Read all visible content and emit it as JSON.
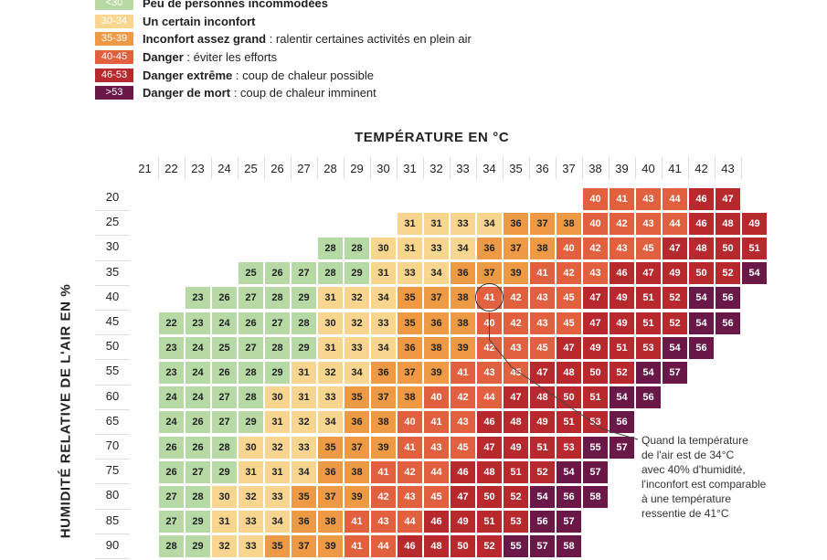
{
  "legend": [
    {
      "range": "<30",
      "label": "Peu de personnes incommodées",
      "desc": "",
      "color": "#b7d9a6"
    },
    {
      "range": "30-34",
      "label": "Un certain inconfort",
      "desc": "",
      "color": "#f8d690"
    },
    {
      "range": "35-39",
      "label": "Inconfort assez grand",
      "desc": " : ralentir certaines activités en plein air",
      "color": "#ee9a44"
    },
    {
      "range": "40-45",
      "label": "Danger",
      "desc": " : éviter les efforts",
      "color": "#e0603f"
    },
    {
      "range": "46-53",
      "label": "Danger extrême",
      "desc": " : coup de chaleur possible",
      "color": "#b8292e"
    },
    {
      "range": ">53",
      "label": "Danger de mort",
      "desc": " : coup de chaleur imminent",
      "color": "#6a1848"
    }
  ],
  "chart_data": {
    "type": "heatmap",
    "title": "TEMPÉRATURE EN °C",
    "ylabel": "HUMIDITÉ RELATIVE DE L'AIR EN %",
    "x": [
      21,
      22,
      23,
      24,
      25,
      26,
      27,
      28,
      29,
      30,
      31,
      32,
      33,
      34,
      35,
      36,
      37,
      38,
      39,
      40,
      41,
      42,
      43
    ],
    "y": [
      20,
      25,
      30,
      35,
      40,
      45,
      50,
      55,
      60,
      65,
      70,
      75,
      80,
      85,
      90
    ],
    "rows": [
      {
        "start": 38,
        "values": [
          40,
          41,
          43,
          44,
          46,
          47
        ]
      },
      {
        "start": 31,
        "values": [
          31,
          31,
          33,
          34,
          36,
          37,
          38,
          40,
          42,
          43,
          44,
          46,
          48,
          49
        ]
      },
      {
        "start": 28,
        "values": [
          28,
          28,
          30,
          31,
          33,
          34,
          36,
          37,
          38,
          40,
          42,
          43,
          45,
          47,
          48,
          50,
          51
        ]
      },
      {
        "start": 25,
        "values": [
          25,
          26,
          27,
          28,
          29,
          31,
          33,
          34,
          36,
          37,
          39,
          41,
          42,
          43,
          46,
          47,
          49,
          50,
          52,
          54
        ]
      },
      {
        "start": 23,
        "values": [
          23,
          26,
          27,
          28,
          29,
          31,
          32,
          34,
          35,
          37,
          38,
          41,
          42,
          43,
          45,
          47,
          49,
          51,
          52,
          54,
          56
        ]
      },
      {
        "start": 22,
        "values": [
          22,
          23,
          24,
          26,
          27,
          28,
          30,
          32,
          33,
          35,
          36,
          38,
          40,
          42,
          43,
          45,
          47,
          49,
          51,
          52,
          54,
          56
        ]
      },
      {
        "start": 22,
        "values": [
          23,
          24,
          25,
          27,
          28,
          29,
          31,
          33,
          34,
          36,
          38,
          39,
          42,
          43,
          45,
          47,
          49,
          51,
          53,
          54,
          56
        ]
      },
      {
        "start": 22,
        "values": [
          23,
          24,
          26,
          28,
          29,
          31,
          32,
          34,
          36,
          37,
          39,
          41,
          43,
          45,
          47,
          48,
          50,
          52,
          54,
          57
        ]
      },
      {
        "start": 22,
        "values": [
          24,
          24,
          27,
          28,
          30,
          31,
          33,
          35,
          37,
          38,
          40,
          42,
          44,
          47,
          48,
          50,
          51,
          54,
          56
        ]
      },
      {
        "start": 22,
        "values": [
          24,
          26,
          27,
          29,
          31,
          32,
          34,
          36,
          38,
          40,
          41,
          43,
          46,
          48,
          49,
          51,
          53,
          56
        ]
      },
      {
        "start": 22,
        "values": [
          26,
          26,
          28,
          30,
          32,
          33,
          35,
          37,
          39,
          41,
          43,
          45,
          47,
          49,
          51,
          53,
          55,
          57
        ]
      },
      {
        "start": 22,
        "values": [
          26,
          27,
          29,
          31,
          31,
          34,
          36,
          38,
          41,
          42,
          44,
          46,
          48,
          51,
          52,
          54,
          57
        ]
      },
      {
        "start": 22,
        "values": [
          27,
          28,
          30,
          32,
          33,
          35,
          37,
          39,
          42,
          43,
          45,
          47,
          50,
          52,
          54,
          56,
          58
        ]
      },
      {
        "start": 22,
        "values": [
          27,
          29,
          31,
          33,
          34,
          36,
          38,
          41,
          43,
          44,
          46,
          49,
          51,
          53,
          56,
          57
        ]
      },
      {
        "start": 22,
        "values": [
          28,
          29,
          32,
          33,
          35,
          37,
          39,
          41,
          44,
          46,
          48,
          50,
          52,
          55,
          57,
          58
        ]
      }
    ],
    "highlight": {
      "temperature": 34,
      "humidity": 40,
      "value": 41
    },
    "annotation": "Quand la température|de l'air est de 34°C|avec 40% d'humidité,|l'inconfort est comparable|à une température|ressentie de 41°C"
  }
}
